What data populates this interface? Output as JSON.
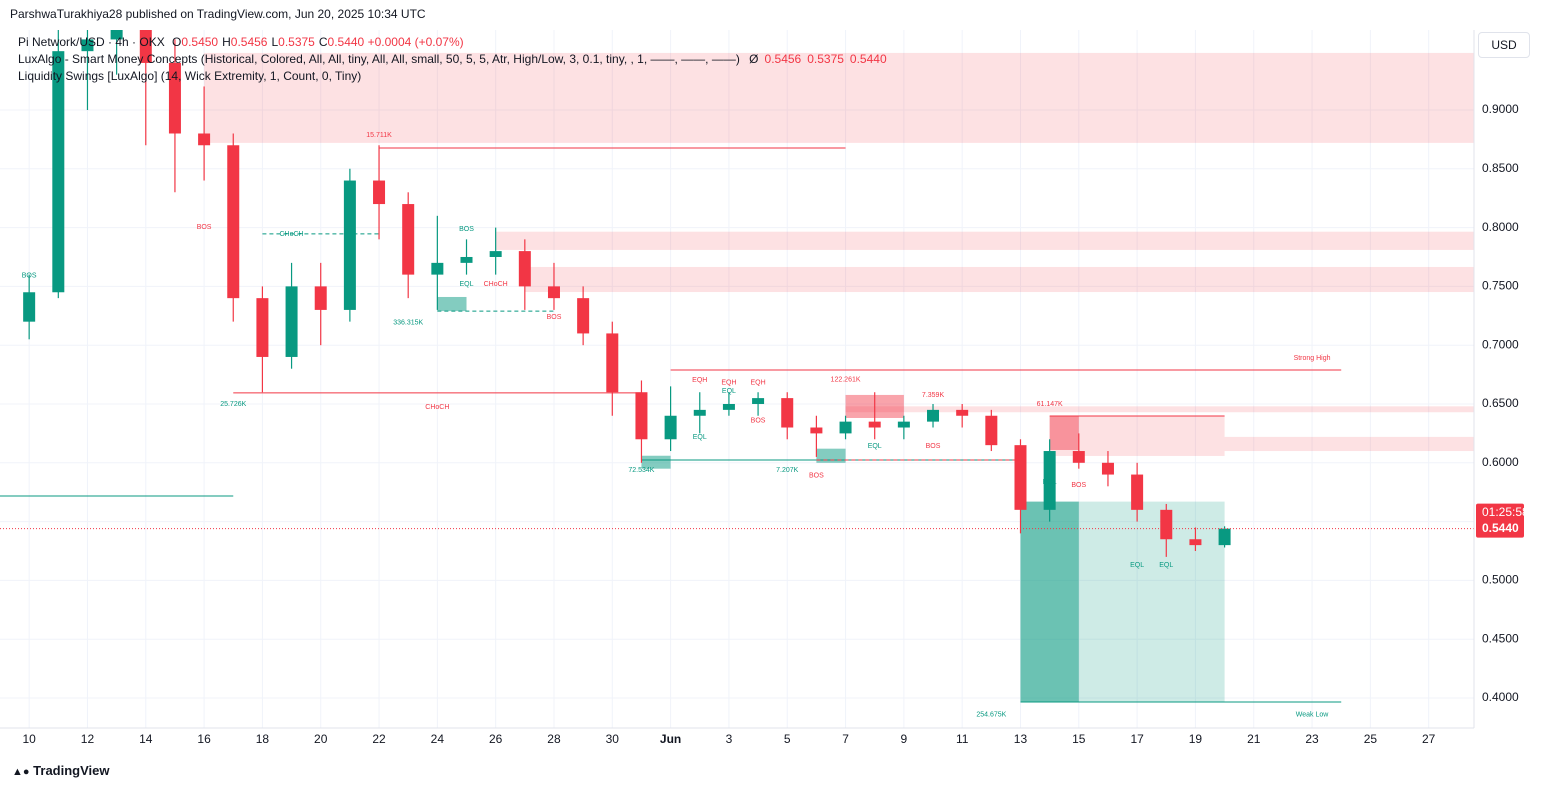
{
  "header": {
    "published": "ParshwaTurakhiya28 published on TradingView.com, Jun 20, 2025 10:34 UTC",
    "symbol": "Pi Network/USD · 4h · OKX",
    "ohlc": [
      {
        "key": "O",
        "value": "0.5450"
      },
      {
        "key": "H",
        "value": "0.5456"
      },
      {
        "key": "L",
        "value": "0.5375"
      },
      {
        "key": "C",
        "value": "0.5440"
      }
    ],
    "change": "+0.0004 (+0.07%)",
    "indicators": [
      {
        "name": "LuxAlgo - Smart Money Concepts (Historical, Colored, All, All, tiny, All, All, small, 50, 5, 5, Atr, High/Low, 3, 0.1, tiny, , 1, ——, ——, ——)",
        "values": [
          "Ø",
          "0.5456",
          "0.5375",
          "0.5440"
        ]
      },
      {
        "name": "Liquidity Swings [LuxAlgo] (14, Wick Extremity, 1, Count, 0, Tiny)",
        "values": []
      }
    ]
  },
  "currency": "USD",
  "brand": "TradingView",
  "chart_data": {
    "type": "candlestick",
    "x": [
      "2025-05-10",
      "2025-05-11",
      "2025-05-12",
      "2025-05-13",
      "2025-05-14",
      "2025-05-15",
      "2025-05-16",
      "2025-05-17",
      "2025-05-18",
      "2025-05-19",
      "2025-05-20",
      "2025-05-21",
      "2025-05-22",
      "2025-05-23",
      "2025-05-24",
      "2025-05-25",
      "2025-05-26",
      "2025-05-27",
      "2025-05-28",
      "2025-05-29",
      "2025-05-30",
      "2025-05-31",
      "2025-06-01",
      "2025-06-02",
      "2025-06-03",
      "2025-06-04",
      "2025-06-05",
      "2025-06-06",
      "2025-06-07",
      "2025-06-08",
      "2025-06-09",
      "2025-06-10",
      "2025-06-11",
      "2025-06-12",
      "2025-06-13",
      "2025-06-14",
      "2025-06-15",
      "2025-06-16",
      "2025-06-17",
      "2025-06-18",
      "2025-06-19",
      "2025-06-20"
    ],
    "open": [
      0.72,
      0.745,
      0.95,
      0.96,
      1.0,
      0.94,
      0.88,
      0.87,
      0.74,
      0.69,
      0.75,
      0.73,
      0.84,
      0.82,
      0.76,
      0.77,
      0.775,
      0.78,
      0.75,
      0.74,
      0.71,
      0.66,
      0.62,
      0.64,
      0.645,
      0.65,
      0.655,
      0.63,
      0.625,
      0.635,
      0.63,
      0.635,
      0.645,
      0.64,
      0.615,
      0.56,
      0.61,
      0.6,
      0.59,
      0.56,
      0.535,
      0.53
    ],
    "high": [
      0.76,
      0.99,
      1.05,
      1.02,
      1.01,
      0.96,
      0.92,
      0.88,
      0.75,
      0.77,
      0.77,
      0.85,
      0.87,
      0.83,
      0.81,
      0.79,
      0.8,
      0.79,
      0.77,
      0.75,
      0.72,
      0.67,
      0.665,
      0.66,
      0.66,
      0.66,
      0.66,
      0.64,
      0.64,
      0.66,
      0.64,
      0.65,
      0.65,
      0.645,
      0.62,
      0.62,
      0.625,
      0.61,
      0.6,
      0.565,
      0.545,
      0.546
    ],
    "low": [
      0.705,
      0.74,
      0.9,
      0.93,
      0.87,
      0.83,
      0.84,
      0.72,
      0.66,
      0.68,
      0.7,
      0.72,
      0.79,
      0.74,
      0.73,
      0.76,
      0.76,
      0.73,
      0.73,
      0.7,
      0.64,
      0.6,
      0.61,
      0.625,
      0.64,
      0.64,
      0.62,
      0.605,
      0.62,
      0.62,
      0.62,
      0.63,
      0.63,
      0.61,
      0.54,
      0.55,
      0.595,
      0.58,
      0.55,
      0.52,
      0.525,
      0.528
    ],
    "close": [
      0.745,
      0.95,
      0.96,
      1.0,
      0.94,
      0.88,
      0.87,
      0.74,
      0.69,
      0.75,
      0.73,
      0.84,
      0.82,
      0.76,
      0.77,
      0.775,
      0.78,
      0.75,
      0.74,
      0.71,
      0.66,
      0.62,
      0.64,
      0.645,
      0.65,
      0.655,
      0.63,
      0.625,
      0.635,
      0.63,
      0.635,
      0.645,
      0.64,
      0.615,
      0.56,
      0.61,
      0.6,
      0.59,
      0.56,
      0.535,
      0.53,
      0.544
    ],
    "up_color": "#089981",
    "down_color": "#f23645",
    "xlim": [
      "2025-05-09",
      "2025-06-29"
    ],
    "xticks": [
      {
        "value": "2025-05-10",
        "label": "10"
      },
      {
        "value": "2025-05-12",
        "label": "12"
      },
      {
        "value": "2025-05-14",
        "label": "14"
      },
      {
        "value": "2025-05-16",
        "label": "16"
      },
      {
        "value": "2025-05-18",
        "label": "18"
      },
      {
        "value": "2025-05-20",
        "label": "20"
      },
      {
        "value": "2025-05-22",
        "label": "22"
      },
      {
        "value": "2025-05-24",
        "label": "24"
      },
      {
        "value": "2025-05-26",
        "label": "26"
      },
      {
        "value": "2025-05-28",
        "label": "28"
      },
      {
        "value": "2025-05-30",
        "label": "30"
      },
      {
        "value": "2025-06-01",
        "label": "Jun"
      },
      {
        "value": "2025-06-03",
        "label": "3"
      },
      {
        "value": "2025-06-05",
        "label": "5"
      },
      {
        "value": "2025-06-07",
        "label": "7"
      },
      {
        "value": "2025-06-09",
        "label": "9"
      },
      {
        "value": "2025-06-11",
        "label": "11"
      },
      {
        "value": "2025-06-13",
        "label": "13"
      },
      {
        "value": "2025-06-15",
        "label": "15"
      },
      {
        "value": "2025-06-17",
        "label": "17"
      },
      {
        "value": "2025-06-19",
        "label": "19"
      },
      {
        "value": "2025-06-21",
        "label": "21"
      },
      {
        "value": "2025-06-23",
        "label": "23"
      },
      {
        "value": "2025-06-25",
        "label": "25"
      },
      {
        "value": "2025-06-27",
        "label": "27"
      }
    ],
    "ylim": [
      0.3745,
      0.968
    ],
    "yticks": [
      {
        "value": 0.4,
        "label": "0.4000"
      },
      {
        "value": 0.45,
        "label": "0.4500"
      },
      {
        "value": 0.5,
        "label": "0.5000"
      },
      {
        "value": 0.55,
        "label": "0.5500"
      },
      {
        "value": 0.6,
        "label": "0.6000"
      },
      {
        "value": 0.65,
        "label": "0.6500"
      },
      {
        "value": 0.7,
        "label": "0.7000"
      },
      {
        "value": 0.75,
        "label": "0.7500"
      },
      {
        "value": 0.8,
        "label": "0.8000"
      },
      {
        "value": 0.85,
        "label": "0.8500"
      },
      {
        "value": 0.9,
        "label": "0.9000"
      }
    ],
    "grid": true,
    "last_price": {
      "value": 0.544,
      "label": "0.5440",
      "countdown": "01:25:58",
      "color": "#f23645"
    },
    "zones": [
      {
        "from": "2025-05-16",
        "to": "2025-06-29",
        "top": 0.9485,
        "bottom": 0.872,
        "color": "rgba(242,54,69,0.15)"
      },
      {
        "from": "2025-05-26",
        "to": "2025-06-29",
        "top": 0.7965,
        "bottom": 0.781,
        "color": "rgba(242,54,69,0.15)"
      },
      {
        "from": "2025-05-27",
        "to": "2025-06-29",
        "top": 0.7665,
        "bottom": 0.7452,
        "color": "rgba(242,54,69,0.15)"
      },
      {
        "from": "2025-06-07",
        "to": "2025-06-29",
        "top": 0.648,
        "bottom": 0.643,
        "color": "rgba(242,54,69,0.15)"
      },
      {
        "from": "2025-06-07",
        "to": "2025-06-09",
        "top": 0.6577,
        "bottom": 0.6381,
        "color": "rgba(242,54,69,0.45)"
      },
      {
        "from": "2025-06-14",
        "to": "2025-06-20",
        "top": 0.6398,
        "bottom": 0.6058,
        "color": "rgba(242,54,69,0.15)"
      },
      {
        "from": "2025-06-14",
        "to": "2025-06-15",
        "top": 0.6398,
        "bottom": 0.6109,
        "color": "rgba(242,54,69,0.45)"
      },
      {
        "from": "2025-06-20",
        "to": "2025-06-29",
        "top": 0.622,
        "bottom": 0.61,
        "color": "rgba(242,54,69,0.15)"
      },
      {
        "from": "2025-06-13",
        "to": "2025-06-15",
        "top": 0.567,
        "bottom": 0.397,
        "color": "rgba(8,153,129,0.6)"
      },
      {
        "from": "2025-06-15",
        "to": "2025-06-20",
        "top": 0.567,
        "bottom": 0.397,
        "color": "rgba(8,153,129,0.2)"
      },
      {
        "from": "2025-05-24",
        "to": "2025-05-25",
        "top": 0.741,
        "bottom": 0.729,
        "color": "rgba(8,153,129,0.5)"
      },
      {
        "from": "2025-05-31",
        "to": "2025-06-01",
        "top": 0.606,
        "bottom": 0.595,
        "color": "rgba(8,153,129,0.5)"
      },
      {
        "from": "2025-06-06",
        "to": "2025-06-07",
        "top": 0.612,
        "bottom": 0.6,
        "color": "rgba(8,153,129,0.5)"
      }
    ],
    "levels": [
      {
        "from": "2025-05-22",
        "to": "2025-06-07",
        "price": 0.8677,
        "color": "#f23645",
        "style": "solid"
      },
      {
        "from": "2025-05-18",
        "to": "2025-05-22",
        "price": 0.7946,
        "color": "#089981",
        "style": "dashed"
      },
      {
        "from": "2025-05-17",
        "to": "2025-05-31",
        "price": 0.6594,
        "color": "#f23645",
        "style": "solid"
      },
      {
        "from": "2025-05-31",
        "to": "2025-06-13",
        "price": 0.6024,
        "color": "#089981",
        "style": "solid"
      },
      {
        "from": "2025-06-01",
        "to": "2025-06-24",
        "price": 0.6789,
        "color": "#f23645",
        "style": "solid"
      },
      {
        "from": "2025-06-13",
        "to": "2025-06-24",
        "price": 0.3966,
        "color": "#089981",
        "style": "solid"
      },
      {
        "from": "2025-05-09",
        "to": "2025-05-17",
        "price": 0.5718,
        "color": "#089981",
        "style": "solid"
      },
      {
        "from": "2025-06-14",
        "to": "2025-06-20",
        "price": 0.6398,
        "color": "#f23645",
        "style": "solid"
      },
      {
        "from": "2025-05-24",
        "to": "2025-05-28",
        "price": 0.729,
        "color": "#089981",
        "style": "dashed"
      },
      {
        "from": "2025-06-06",
        "to": "2025-06-13",
        "price": 0.6024,
        "color": "#f23645",
        "style": "dashed"
      }
    ],
    "annotations": [
      {
        "text": "BOS",
        "x": "2025-05-10",
        "y": 0.759,
        "color": "#089981"
      },
      {
        "text": "BOS",
        "x": "2025-05-16",
        "y": 0.8005,
        "color": "#f23645"
      },
      {
        "text": "15.711K",
        "x": "2025-05-22",
        "y": 0.8787,
        "color": "#f23645"
      },
      {
        "text": "CHoCH",
        "x": "2025-05-19",
        "y": 0.7946,
        "color": "#089981"
      },
      {
        "text": "BOS",
        "x": "2025-05-25",
        "y": 0.7985,
        "color": "#089981"
      },
      {
        "text": "EQL",
        "x": "2025-05-25",
        "y": 0.752,
        "color": "#089981"
      },
      {
        "text": "CHoCH",
        "x": "2025-05-26",
        "y": 0.752,
        "color": "#f23645"
      },
      {
        "text": "BOS",
        "x": "2025-05-28",
        "y": 0.724,
        "color": "#f23645"
      },
      {
        "text": "336.315K",
        "x": "2025-05-23",
        "y": 0.719,
        "color": "#089981"
      },
      {
        "text": "CHoCH",
        "x": "2025-05-24",
        "y": 0.6475,
        "color": "#f23645"
      },
      {
        "text": "25.726K",
        "x": "2025-05-17",
        "y": 0.65,
        "color": "#089981"
      },
      {
        "text": "72.534K",
        "x": "2025-05-31",
        "y": 0.5939,
        "color": "#089981"
      },
      {
        "text": "EQH",
        "x": "2025-06-02",
        "y": 0.6704,
        "color": "#f23645"
      },
      {
        "text": "EQH",
        "x": "2025-06-03",
        "y": 0.668,
        "color": "#f23645"
      },
      {
        "text": "EQH",
        "x": "2025-06-04",
        "y": 0.668,
        "color": "#f23645"
      },
      {
        "text": "EQL",
        "x": "2025-06-02",
        "y": 0.622,
        "color": "#089981"
      },
      {
        "text": "EQL",
        "x": "2025-06-03",
        "y": 0.661,
        "color": "#089981"
      },
      {
        "text": "BOS",
        "x": "2025-06-04",
        "y": 0.636,
        "color": "#f23645"
      },
      {
        "text": "7.207K",
        "x": "2025-06-05",
        "y": 0.5939,
        "color": "#089981"
      },
      {
        "text": "BOS",
        "x": "2025-06-06",
        "y": 0.589,
        "color": "#f23645"
      },
      {
        "text": "122.261K",
        "x": "2025-06-07",
        "y": 0.6705,
        "color": "#f23645"
      },
      {
        "text": "7.359K",
        "x": "2025-06-10",
        "y": 0.6577,
        "color": "#f23645"
      },
      {
        "text": "EQL",
        "x": "2025-06-08",
        "y": 0.614,
        "color": "#089981"
      },
      {
        "text": "BOS",
        "x": "2025-06-10",
        "y": 0.614,
        "color": "#f23645"
      },
      {
        "text": "61.147K",
        "x": "2025-06-14",
        "y": 0.65,
        "color": "#f23645"
      },
      {
        "text": "EQL",
        "x": "2025-06-14",
        "y": 0.5837,
        "color": "#089981"
      },
      {
        "text": "BOS",
        "x": "2025-06-15",
        "y": 0.581,
        "color": "#f23645"
      },
      {
        "text": "Strong High",
        "x": "2025-06-23",
        "y": 0.689,
        "color": "#f23645"
      },
      {
        "text": "EQL",
        "x": "2025-06-17",
        "y": 0.513,
        "color": "#089981"
      },
      {
        "text": "EQL",
        "x": "2025-06-18",
        "y": 0.513,
        "color": "#089981"
      },
      {
        "text": "254.675K",
        "x": "2025-06-12",
        "y": 0.386,
        "color": "#089981"
      },
      {
        "text": "Weak Low",
        "x": "2025-06-23",
        "y": 0.386,
        "color": "#089981"
      }
    ]
  }
}
